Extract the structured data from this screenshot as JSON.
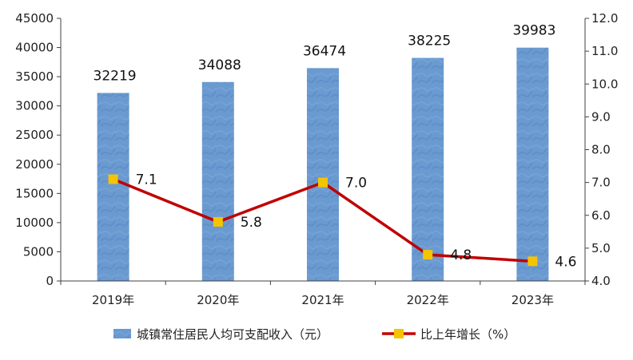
{
  "chart_data": {
    "type": "bar",
    "categories": [
      "2019年",
      "2020年",
      "2021年",
      "2022年",
      "2023年"
    ],
    "series": [
      {
        "name": "城镇常住居民人均可支配收入（元）",
        "type": "bar",
        "axis": "left",
        "color": "#6a9ad0",
        "values": [
          32219,
          34088,
          36474,
          38225,
          39983
        ],
        "labels": [
          "32219",
          "34088",
          "36474",
          "38225",
          "39983"
        ]
      },
      {
        "name": "比上年增长（%）",
        "type": "line",
        "axis": "right",
        "line_color": "#c00000",
        "marker_color": "#f5c400",
        "values": [
          7.1,
          5.8,
          7.0,
          4.8,
          4.6
        ],
        "labels": [
          "7.1",
          "5.8",
          "7.0",
          "4.8",
          "4.6"
        ]
      }
    ],
    "y_left": {
      "ylim": [
        0,
        45000
      ],
      "ticks": [
        0,
        5000,
        10000,
        15000,
        20000,
        25000,
        30000,
        35000,
        40000,
        45000
      ],
      "tick_labels": [
        "0",
        "5000",
        "10000",
        "15000",
        "20000",
        "25000",
        "30000",
        "35000",
        "40000",
        "45000"
      ]
    },
    "y_right": {
      "ylim": [
        4.0,
        12.0
      ],
      "ticks": [
        4,
        5,
        6,
        7,
        8,
        9,
        10,
        11,
        12
      ],
      "tick_labels": [
        "4.0",
        "5.0",
        "6.0",
        "7.0",
        "8.0",
        "9.0",
        "10.0",
        "11.0",
        "12.0"
      ]
    },
    "grid": false,
    "legend_position": "bottom"
  }
}
